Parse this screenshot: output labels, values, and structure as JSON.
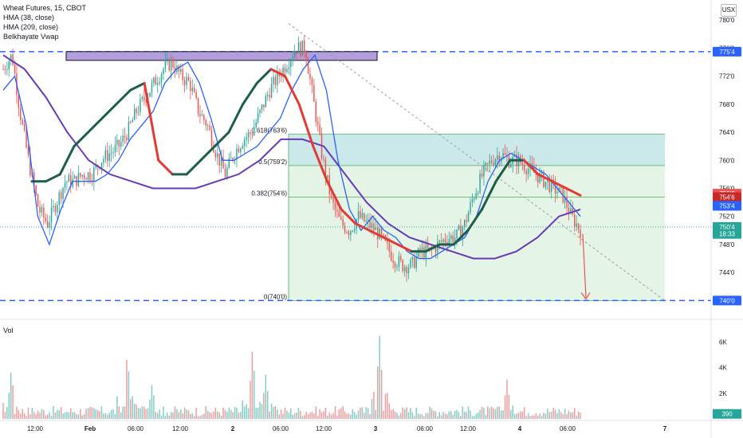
{
  "legend": {
    "symbol": "Wheat Futures, 15, CBOT",
    "indicators": [
      "HMA (38, close)",
      "HMA (209, close)",
      "Belkhayate Vwap"
    ]
  },
  "currency": "USX",
  "volume_label": "Vol",
  "colors": {
    "up": "#26a69a",
    "down": "#ef5350",
    "hma_fast_line": "#2962ff",
    "hma_slow_line": "#673ab7",
    "vwap_up": "#1b5e4a",
    "vwap_down": "#e53935",
    "dashed_level": "#2962ff",
    "fib_zone_top": "#cbe9ea",
    "fib_zone_bottom": "#e4f4e6",
    "resistance_box": "#b39ddb"
  },
  "chart_data": [
    {
      "type": "candlestick",
      "title": "Wheat Futures, 15, CBOT",
      "price_axis_ticks": [
        "780'0",
        "776'0",
        "772'0",
        "768'0",
        "764'0",
        "760'0",
        "756'0",
        "752'0",
        "748'0",
        "744'0",
        "740'0"
      ],
      "time_axis_ticks": [
        "12:00",
        "Feb",
        "06:00",
        "12:00",
        "2",
        "06:00",
        "12:00",
        "3",
        "06:00",
        "12:00",
        "4",
        "06:00",
        "7"
      ],
      "ylim": [
        738.0,
        781.5
      ],
      "price_labels": [
        {
          "text": "775'4",
          "kind": "level",
          "price": 775.5
        },
        {
          "text": "755'2",
          "kind": "down",
          "price": 755.25
        },
        {
          "text": "754'6",
          "kind": "vwap",
          "price": 754.75
        },
        {
          "text": "753'4",
          "kind": "hma",
          "price": 753.5
        },
        {
          "text": "750'4",
          "kind": "last",
          "price": 750.5
        },
        {
          "text": "18:33",
          "kind": "countdown",
          "price": 749.5
        },
        {
          "text": "740'0",
          "kind": "level",
          "price": 740.0
        }
      ],
      "horizontal_levels": [
        775.5,
        740.0
      ],
      "fib_levels": [
        {
          "label": "0.618(763'6)",
          "price": 763.75
        },
        {
          "label": "0.5(759'2)",
          "price": 759.25
        },
        {
          "label": "0.382(754'6)",
          "price": 754.75
        },
        {
          "label": "0(740'0)",
          "price": 740.0
        }
      ],
      "fib_range": {
        "high": 763.75,
        "low": 740.0
      },
      "resistance_box": {
        "high": 775.5,
        "low": 774.25
      },
      "trendline": {
        "from": [
          "05:30 day 2",
          779.5
        ],
        "to": [
          "07:00 day 7",
          740.0
        ]
      },
      "projection_arrow": {
        "from": 749.5,
        "to": 740.0
      },
      "close_path": [
        773,
        775,
        766,
        759,
        753,
        751,
        754,
        757,
        757,
        758,
        758,
        760,
        761,
        762,
        764,
        767,
        769,
        771,
        773,
        774,
        772,
        771,
        767,
        765,
        761,
        758,
        761,
        763,
        764,
        767,
        770,
        772,
        774,
        776,
        776,
        768,
        760,
        754,
        751,
        750,
        752,
        751,
        750,
        748,
        746,
        745,
        745,
        747,
        747,
        748,
        749,
        749,
        751,
        755,
        758,
        760,
        761,
        760,
        760,
        759,
        758,
        757,
        756,
        755,
        752,
        750
      ],
      "hma_fast_path": [
        770,
        772,
        765,
        752,
        748,
        753,
        757,
        757,
        757,
        758,
        760,
        763,
        765,
        767,
        771,
        773,
        774,
        771,
        766,
        760,
        760,
        761,
        762,
        764,
        766,
        770,
        773,
        775,
        770,
        760,
        753,
        750,
        752,
        750,
        749,
        747,
        746,
        746,
        747,
        748,
        749,
        752,
        757,
        760,
        761,
        760,
        759,
        758,
        756,
        754,
        752
      ],
      "hma_slow_path": [
        775,
        773,
        769,
        764,
        760,
        758,
        757,
        756,
        756,
        756,
        757,
        758,
        760,
        763,
        763,
        762,
        758,
        754,
        751,
        749,
        748,
        747,
        746,
        746,
        747,
        749,
        752,
        753
      ],
      "vwap_path": [
        757,
        757,
        758,
        762,
        764,
        766,
        768,
        770,
        771,
        760,
        758,
        758,
        760,
        762,
        764,
        768,
        771,
        773,
        772,
        768,
        762,
        757,
        753,
        751,
        750,
        749,
        748,
        747,
        747,
        748,
        748,
        750,
        753,
        757,
        760,
        760,
        758,
        757,
        756,
        755
      ]
    },
    {
      "type": "bar",
      "title": "Vol",
      "volume_axis_ticks": [
        "6K",
        "4K",
        "2K"
      ],
      "ylim": [
        0,
        7200
      ],
      "last_value_label": "390",
      "last_value": 390,
      "spikes": [
        {
          "position": 0.014,
          "value": 3900
        },
        {
          "position": 0.215,
          "value": 5200
        },
        {
          "position": 0.258,
          "value": 2800
        },
        {
          "position": 0.432,
          "value": 5600
        },
        {
          "position": 0.455,
          "value": 3500
        },
        {
          "position": 0.652,
          "value": 6600
        },
        {
          "position": 0.664,
          "value": 2500
        },
        {
          "position": 0.873,
          "value": 3100
        }
      ],
      "base_value": 500
    }
  ]
}
